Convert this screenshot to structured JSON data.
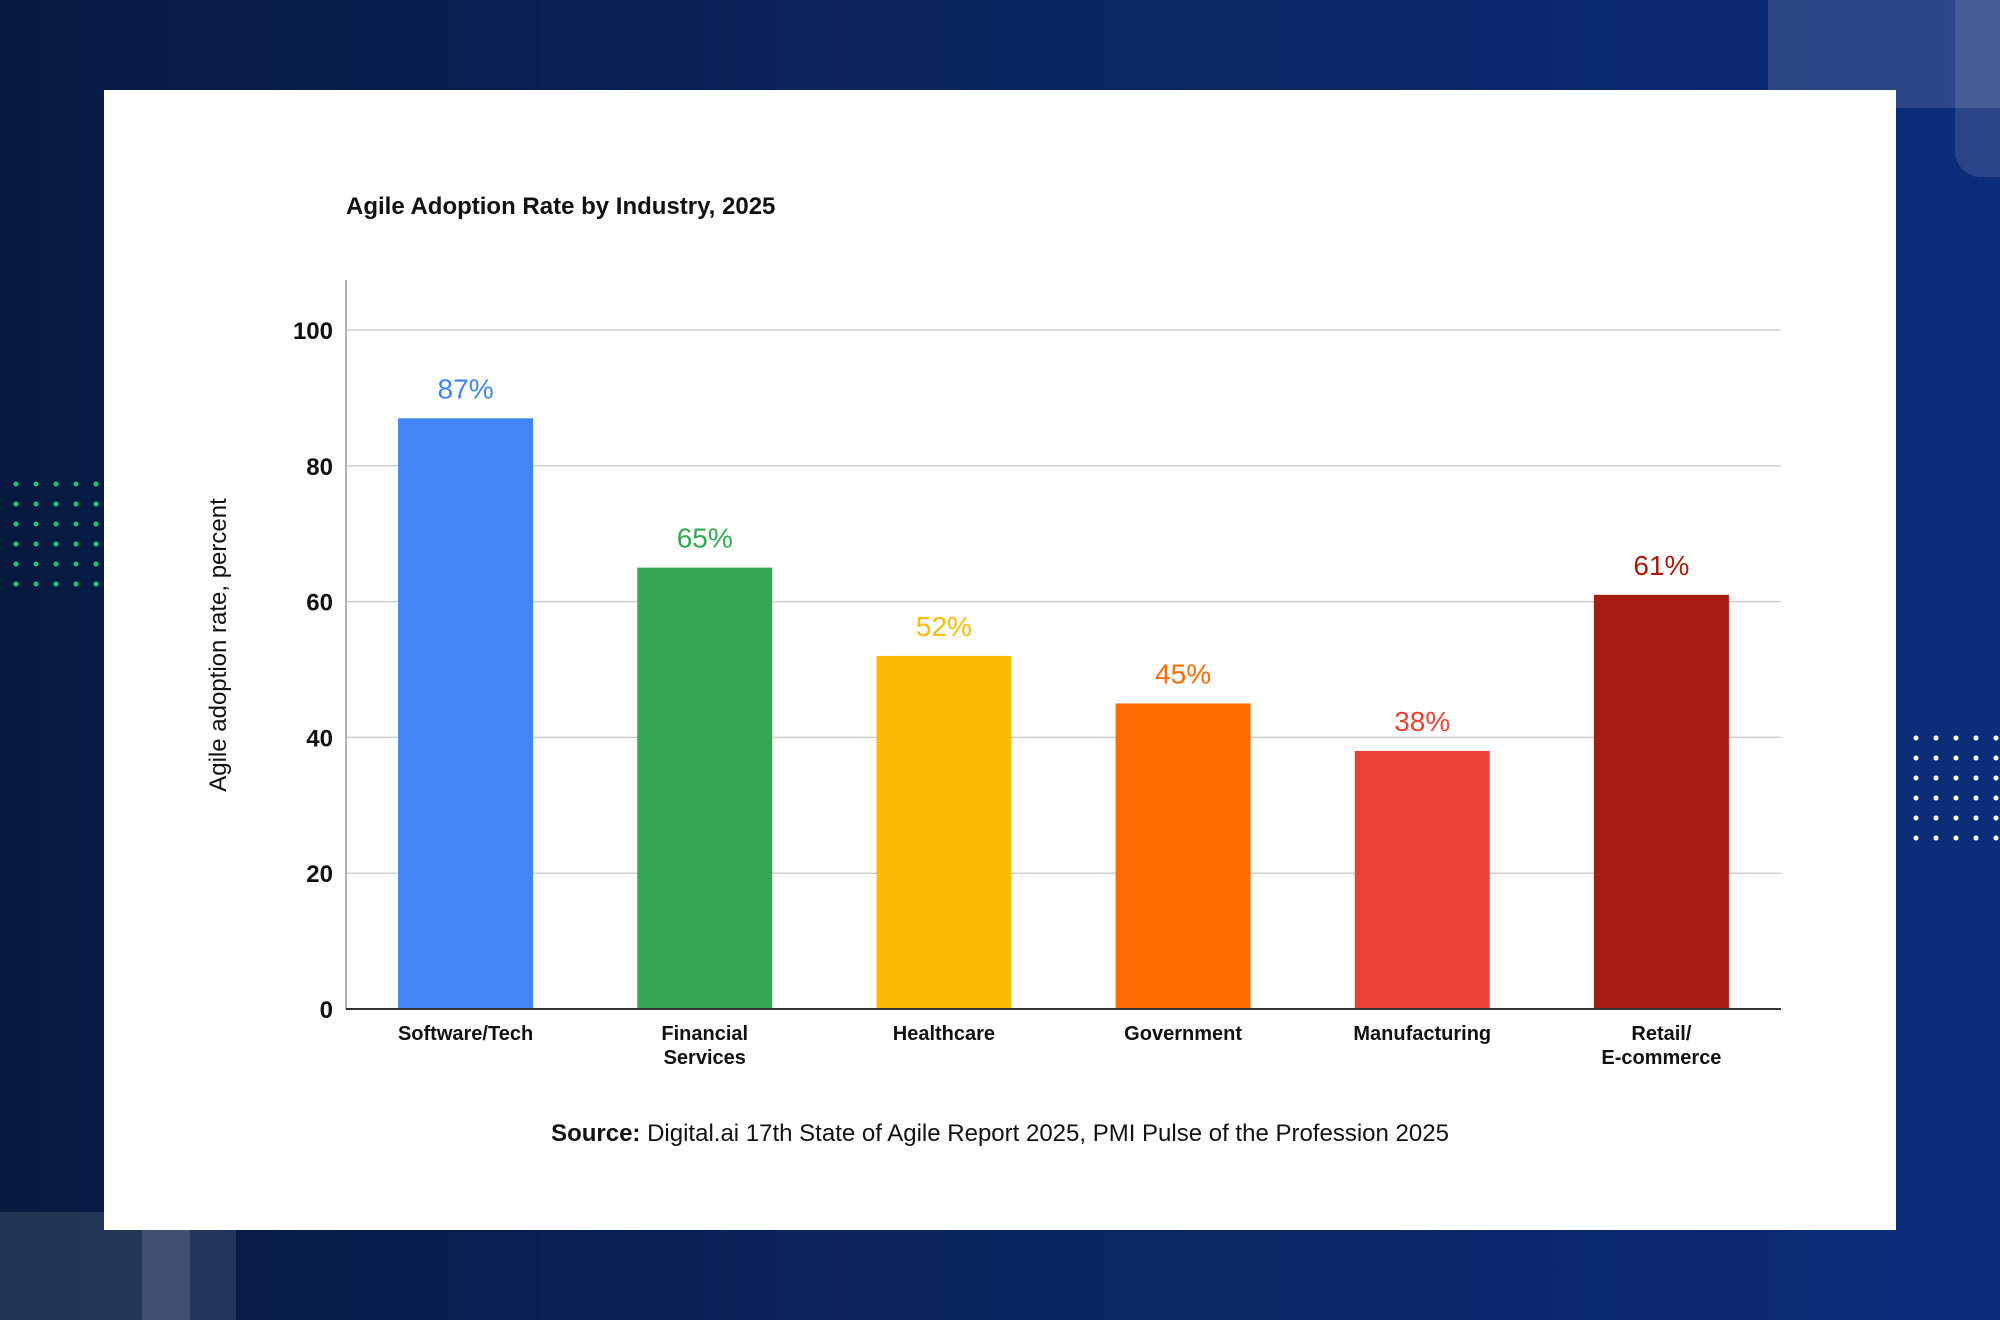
{
  "chart_data": {
    "type": "bar",
    "title": "Agile Adoption Rate by Industry, 2025",
    "ylabel": "Agile adoption rate, percent",
    "xlabel": "",
    "ylim": [
      0,
      100
    ],
    "yticks": [
      0,
      20,
      40,
      60,
      80,
      100
    ],
    "grid": true,
    "categories": [
      [
        "Software/Tech"
      ],
      [
        "Financial",
        "Services"
      ],
      [
        "Healthcare"
      ],
      [
        "Government"
      ],
      [
        "Manufacturing"
      ],
      [
        "Retail/",
        "E-commerce"
      ]
    ],
    "values": [
      87,
      65,
      52,
      45,
      38,
      61
    ],
    "value_labels": [
      "87%",
      "65%",
      "52%",
      "45%",
      "38%",
      "61%"
    ],
    "colors": [
      "#4285f4",
      "#34a853",
      "#fbbc04",
      "#ff6d01",
      "#ea4335",
      "#a61c10"
    ],
    "source_label": "Source:",
    "source_text": " Digital.ai 17th State of Agile Report 2025, PMI Pulse of the Profession 2025"
  }
}
